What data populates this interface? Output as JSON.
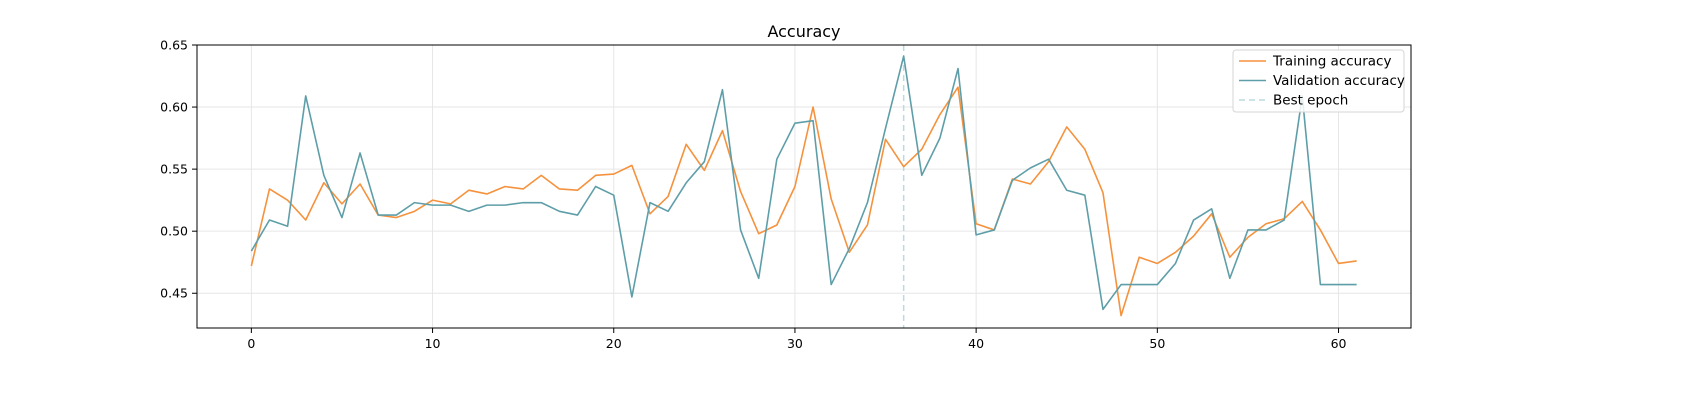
{
  "chart_data": {
    "type": "line",
    "title": "Accuracy",
    "xlabel": "",
    "ylabel": "",
    "xlim": [
      -3,
      64
    ],
    "ylim": [
      0.422,
      0.65
    ],
    "xticks": [
      0,
      10,
      20,
      30,
      40,
      50,
      60
    ],
    "yticks": [
      0.45,
      0.5,
      0.55,
      0.6,
      0.65
    ],
    "ytick_labels": [
      "0.45",
      "0.50",
      "0.55",
      "0.60",
      "0.65"
    ],
    "grid": true,
    "legend_position": "top-right",
    "series": [
      {
        "name": "Training accuracy",
        "color": "#f5923e",
        "style": "solid",
        "x": [
          0,
          1,
          2,
          3,
          4,
          5,
          6,
          7,
          8,
          9,
          10,
          11,
          12,
          13,
          14,
          15,
          16,
          17,
          18,
          19,
          20,
          21,
          22,
          23,
          24,
          25,
          26,
          27,
          28,
          29,
          30,
          31,
          32,
          33,
          34,
          35,
          36,
          37,
          38,
          39,
          40,
          41,
          42,
          43,
          44,
          45,
          46,
          47,
          48,
          49,
          50,
          51,
          52,
          53,
          54,
          55,
          56,
          57,
          58,
          59,
          60,
          61
        ],
        "values": [
          0.472,
          0.534,
          0.525,
          0.509,
          0.539,
          0.522,
          0.538,
          0.513,
          0.511,
          0.516,
          0.525,
          0.522,
          0.533,
          0.53,
          0.536,
          0.534,
          0.545,
          0.534,
          0.533,
          0.545,
          0.546,
          0.553,
          0.514,
          0.528,
          0.57,
          0.549,
          0.581,
          0.532,
          0.498,
          0.505,
          0.536,
          0.6,
          0.526,
          0.483,
          0.505,
          0.574,
          0.552,
          0.566,
          0.594,
          0.616,
          0.506,
          0.501,
          0.542,
          0.538,
          0.556,
          0.584,
          0.566,
          0.531,
          0.432,
          0.479,
          0.474,
          0.483,
          0.496,
          0.514,
          0.479,
          0.495,
          0.506,
          0.51,
          0.524,
          0.501,
          0.474,
          0.476
        ]
      },
      {
        "name": "Validation accuracy",
        "color": "#5e9ea8",
        "style": "solid",
        "x": [
          0,
          1,
          2,
          3,
          4,
          5,
          6,
          7,
          8,
          9,
          10,
          11,
          12,
          13,
          14,
          15,
          16,
          17,
          18,
          19,
          20,
          21,
          22,
          23,
          24,
          25,
          26,
          27,
          28,
          29,
          30,
          31,
          32,
          33,
          34,
          35,
          36,
          37,
          38,
          39,
          40,
          41,
          42,
          43,
          44,
          45,
          46,
          47,
          48,
          49,
          50,
          51,
          52,
          53,
          54,
          55,
          56,
          57,
          58,
          59,
          60,
          61
        ],
        "values": [
          0.484,
          0.509,
          0.504,
          0.609,
          0.545,
          0.511,
          0.563,
          0.513,
          0.513,
          0.523,
          0.521,
          0.521,
          0.516,
          0.521,
          0.521,
          0.523,
          0.523,
          0.516,
          0.513,
          0.536,
          0.529,
          0.447,
          0.523,
          0.516,
          0.539,
          0.556,
          0.614,
          0.501,
          0.462,
          0.558,
          0.587,
          0.589,
          0.457,
          0.486,
          0.523,
          0.583,
          0.641,
          0.545,
          0.575,
          0.631,
          0.497,
          0.501,
          0.541,
          0.551,
          0.558,
          0.533,
          0.529,
          0.437,
          0.457,
          0.457,
          0.457,
          0.474,
          0.509,
          0.518,
          0.462,
          0.501,
          0.501,
          0.509,
          0.609,
          0.457,
          0.457,
          0.457
        ]
      }
    ],
    "vlines": [
      {
        "name": "Best epoch",
        "x": 36,
        "color": "#b9dbe0",
        "style": "dashed"
      }
    ]
  }
}
